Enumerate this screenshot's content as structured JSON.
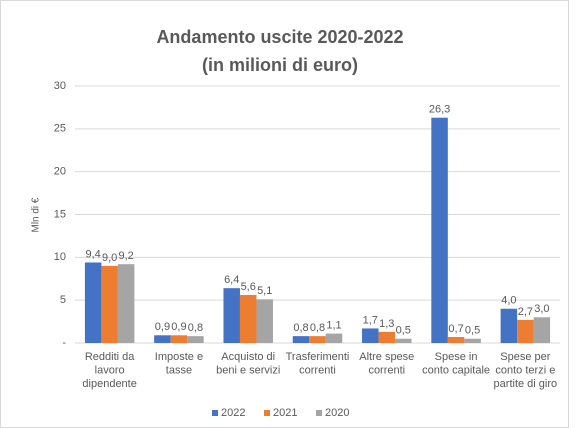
{
  "chart_data": {
    "type": "bar",
    "title": "Andamento uscite 2020-2022",
    "subtitle": "(in milioni di euro)",
    "y_label": "Mln di €",
    "categories": [
      [
        "Redditi da",
        "lavoro",
        "dipendente"
      ],
      [
        "Imposte e",
        "tasse"
      ],
      [
        "Acquisto di",
        "beni e servizi"
      ],
      [
        "Trasferimenti",
        "correnti"
      ],
      [
        "Altre spese",
        "correnti"
      ],
      [
        "Spese in",
        "conto capitale"
      ],
      [
        "Spese per",
        "conto terzi e",
        "partite di giro"
      ]
    ],
    "series": [
      {
        "name": "2022",
        "color": "#4472c4",
        "values": [
          9.4,
          0.9,
          6.4,
          0.8,
          1.7,
          26.3,
          4.0
        ],
        "value_labels": [
          "9,4",
          "0,9",
          "6,4",
          "0,8",
          "1,7",
          "26,3",
          "4,0"
        ]
      },
      {
        "name": "2021",
        "color": "#ed7d31",
        "values": [
          9.0,
          0.9,
          5.6,
          0.8,
          1.3,
          0.7,
          2.7
        ],
        "value_labels": [
          "9,0",
          "0,9",
          "5,6",
          "0,8",
          "1,3",
          "0,7",
          "2,7"
        ]
      },
      {
        "name": "2020",
        "color": "#a5a5a5",
        "values": [
          9.2,
          0.8,
          5.1,
          1.1,
          0.5,
          0.5,
          3.0
        ],
        "value_labels": [
          "9,2",
          "0,8",
          "5,1",
          "1,1",
          "0,5",
          "0,5",
          "3,0"
        ]
      }
    ],
    "ylim": [
      0,
      30
    ],
    "yticks": [
      {
        "value": 0,
        "label": "-"
      },
      5,
      10,
      15,
      20,
      25,
      30
    ],
    "grid": true,
    "legend": "bottom"
  }
}
